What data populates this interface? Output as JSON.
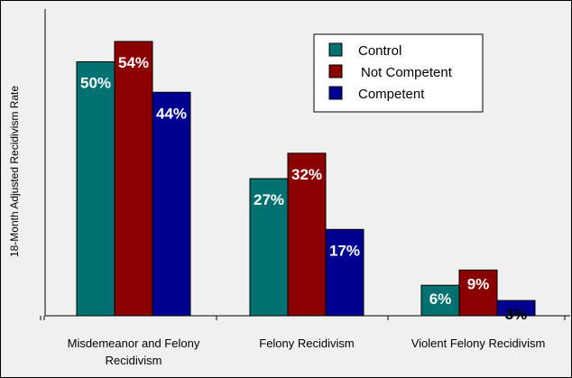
{
  "chart_data": {
    "type": "bar",
    "categories": [
      "Misdemeanor and Felony Recidivism",
      "Felony Recidivism",
      "Violent Felony Recidivism"
    ],
    "category_lines": [
      [
        "Misdemeanor and Felony",
        "Recidivism"
      ],
      [
        "Felony Recidivism"
      ],
      [
        "Violent Felony Recidivism"
      ]
    ],
    "series": [
      {
        "name": "Control",
        "values": [
          50,
          27,
          6
        ],
        "labels": [
          "50%",
          "27%",
          "6%"
        ],
        "color": "#007070",
        "label_color": "#ffffff"
      },
      {
        "name": "Not Competent",
        "values": [
          54,
          32,
          9
        ],
        "labels": [
          "54%",
          "32%",
          "9%"
        ],
        "color": "#8b0000",
        "label_color": "#ffffff"
      },
      {
        "name": "Competent",
        "values": [
          44,
          17,
          3
        ],
        "labels": [
          "44%",
          "17%",
          "3%"
        ],
        "color": "#000090",
        "label_color": "#ffffff"
      }
    ],
    "ylabel": "18-Month Adjusted Recidivism Rate",
    "ylim": [
      0,
      56
    ],
    "grid": false,
    "legend": "top-right",
    "background": "#f0f0f0"
  }
}
